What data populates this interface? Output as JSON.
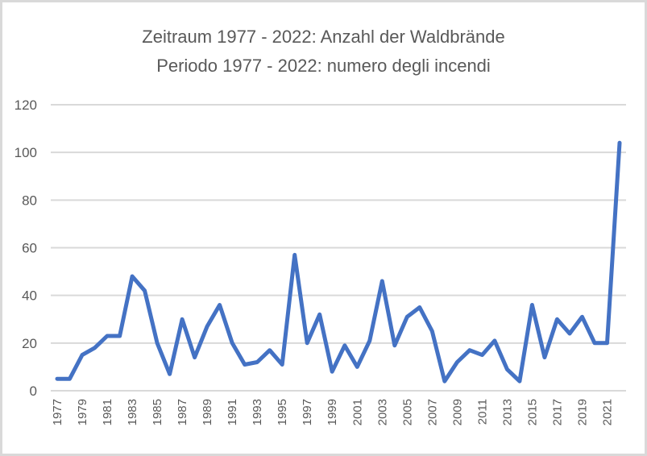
{
  "chart": {
    "title_line1": "Zeitraum 1977 - 2022: Anzahl der Waldbrände",
    "title_line2": "Periodo 1977 - 2022: numero degli incendi",
    "line_color": "#4472C4",
    "grid_color": "#d9d9d9",
    "text_color": "#595959"
  },
  "chart_data": {
    "type": "line",
    "title": "Zeitraum 1977 - 2022: Anzahl der Waldbrände / Periodo 1977 - 2022: numero degli incendi",
    "xlabel": "",
    "ylabel": "",
    "ylim": [
      0,
      120
    ],
    "yticks": [
      0,
      20,
      40,
      60,
      80,
      100,
      120
    ],
    "grid": true,
    "legend": "none",
    "x": [
      1977,
      1978,
      1979,
      1980,
      1981,
      1982,
      1983,
      1984,
      1985,
      1986,
      1987,
      1988,
      1989,
      1990,
      1991,
      1992,
      1993,
      1994,
      1995,
      1996,
      1997,
      1998,
      1999,
      2000,
      2001,
      2002,
      2003,
      2004,
      2005,
      2006,
      2007,
      2008,
      2009,
      2010,
      2011,
      2012,
      2013,
      2014,
      2015,
      2016,
      2017,
      2018,
      2019,
      2020,
      2021,
      2022
    ],
    "xtick_labels": [
      "1977",
      "1979",
      "1981",
      "1983",
      "1985",
      "1987",
      "1989",
      "1991",
      "1993",
      "1995",
      "1997",
      "1999",
      "2001",
      "2003",
      "2005",
      "2007",
      "2009",
      "2011",
      "2013",
      "2015",
      "2017",
      "2019",
      "2021"
    ],
    "series": [
      {
        "name": "Anzahl der Waldbrände",
        "values": [
          5,
          5,
          15,
          18,
          23,
          23,
          48,
          42,
          20,
          7,
          30,
          14,
          27,
          36,
          20,
          11,
          12,
          17,
          11,
          57,
          20,
          32,
          8,
          19,
          10,
          21,
          46,
          19,
          31,
          35,
          25,
          4,
          12,
          17,
          15,
          21,
          9,
          4,
          36,
          14,
          30,
          24,
          31,
          20,
          20,
          104
        ]
      }
    ]
  }
}
